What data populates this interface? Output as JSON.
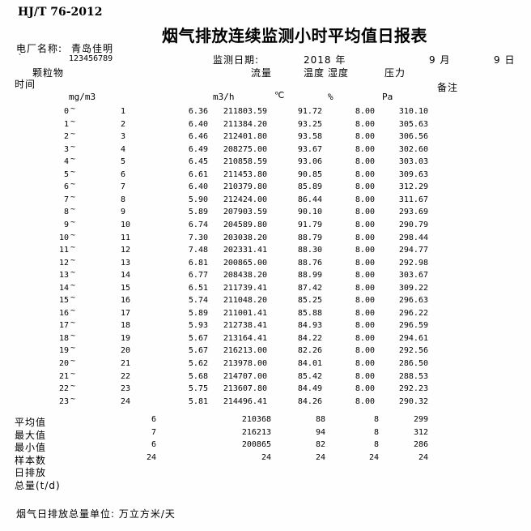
{
  "document": {
    "standard": "HJ/T 76-2012",
    "title": "烟气排放连续监测小时平均值日报表",
    "plant_label": "电厂名称:",
    "plant_name": "青岛佳明",
    "mark": "`",
    "plant_code": "123456789",
    "date_label": "监测日期:",
    "date_year": "2018 年",
    "date_month": "9 月",
    "date_day": "9 日"
  },
  "columns": {
    "time_label": "时间",
    "pm_label": "颗粒物",
    "flow_label": "流量",
    "temp_label": "温度",
    "hum_label": "湿度",
    "press_label": "压力",
    "note_label": "备注",
    "pm_unit": "mg/m3",
    "flow_unit": "m3/h",
    "temp_unit": "℃",
    "hum_unit": "%",
    "press_unit": "Pa",
    "tilde": "~"
  },
  "table": {
    "rows": [
      {
        "start": "0",
        "end": "1",
        "pm": "6.36",
        "flow": "211803.59",
        "temp": "91.72",
        "hum": "8.00",
        "press": "310.10"
      },
      {
        "start": "1",
        "end": "2",
        "pm": "6.40",
        "flow": "211384.20",
        "temp": "93.25",
        "hum": "8.00",
        "press": "305.63"
      },
      {
        "start": "2",
        "end": "3",
        "pm": "6.46",
        "flow": "212401.80",
        "temp": "93.58",
        "hum": "8.00",
        "press": "306.56"
      },
      {
        "start": "3",
        "end": "4",
        "pm": "6.49",
        "flow": "208275.00",
        "temp": "93.67",
        "hum": "8.00",
        "press": "302.60"
      },
      {
        "start": "4",
        "end": "5",
        "pm": "6.45",
        "flow": "210858.59",
        "temp": "93.06",
        "hum": "8.00",
        "press": "303.03"
      },
      {
        "start": "5",
        "end": "6",
        "pm": "6.61",
        "flow": "211453.80",
        "temp": "90.85",
        "hum": "8.00",
        "press": "309.63"
      },
      {
        "start": "6",
        "end": "7",
        "pm": "6.40",
        "flow": "210379.80",
        "temp": "85.89",
        "hum": "8.00",
        "press": "312.29"
      },
      {
        "start": "7",
        "end": "8",
        "pm": "5.90",
        "flow": "212424.00",
        "temp": "86.44",
        "hum": "8.00",
        "press": "311.67"
      },
      {
        "start": "8",
        "end": "9",
        "pm": "5.89",
        "flow": "207903.59",
        "temp": "90.10",
        "hum": "8.00",
        "press": "293.69"
      },
      {
        "start": "9",
        "end": "10",
        "pm": "6.74",
        "flow": "204589.80",
        "temp": "91.79",
        "hum": "8.00",
        "press": "290.79"
      },
      {
        "start": "10",
        "end": "11",
        "pm": "7.30",
        "flow": "203038.20",
        "temp": "88.79",
        "hum": "8.00",
        "press": "298.44"
      },
      {
        "start": "11",
        "end": "12",
        "pm": "7.48",
        "flow": "202331.41",
        "temp": "88.30",
        "hum": "8.00",
        "press": "294.77"
      },
      {
        "start": "12",
        "end": "13",
        "pm": "6.81",
        "flow": "200865.00",
        "temp": "88.76",
        "hum": "8.00",
        "press": "292.98"
      },
      {
        "start": "13",
        "end": "14",
        "pm": "6.77",
        "flow": "208438.20",
        "temp": "88.99",
        "hum": "8.00",
        "press": "303.67"
      },
      {
        "start": "14",
        "end": "15",
        "pm": "6.51",
        "flow": "211739.41",
        "temp": "87.42",
        "hum": "8.00",
        "press": "309.22"
      },
      {
        "start": "15",
        "end": "16",
        "pm": "5.74",
        "flow": "211048.20",
        "temp": "85.25",
        "hum": "8.00",
        "press": "296.63"
      },
      {
        "start": "16",
        "end": "17",
        "pm": "5.89",
        "flow": "211001.41",
        "temp": "85.88",
        "hum": "8.00",
        "press": "296.22"
      },
      {
        "start": "17",
        "end": "18",
        "pm": "5.93",
        "flow": "212738.41",
        "temp": "84.93",
        "hum": "8.00",
        "press": "296.59"
      },
      {
        "start": "18",
        "end": "19",
        "pm": "5.67",
        "flow": "213164.41",
        "temp": "84.22",
        "hum": "8.00",
        "press": "294.61"
      },
      {
        "start": "19",
        "end": "20",
        "pm": "5.67",
        "flow": "216213.00",
        "temp": "82.26",
        "hum": "8.00",
        "press": "292.56"
      },
      {
        "start": "20",
        "end": "21",
        "pm": "5.62",
        "flow": "213978.00",
        "temp": "84.01",
        "hum": "8.00",
        "press": "286.50"
      },
      {
        "start": "21",
        "end": "22",
        "pm": "5.68",
        "flow": "214707.00",
        "temp": "85.42",
        "hum": "8.00",
        "press": "288.53"
      },
      {
        "start": "22",
        "end": "23",
        "pm": "5.75",
        "flow": "213607.80",
        "temp": "84.49",
        "hum": "8.00",
        "press": "292.23"
      },
      {
        "start": "23",
        "end": "24",
        "pm": "5.81",
        "flow": "214496.41",
        "temp": "84.26",
        "hum": "8.00",
        "press": "290.32"
      }
    ]
  },
  "summary": {
    "rows": [
      {
        "label": "平均值",
        "pm": "6",
        "flow": "210368",
        "temp": "88",
        "hum": "8",
        "press": "299"
      },
      {
        "label": "最大值",
        "pm": "7",
        "flow": "216213",
        "temp": "94",
        "hum": "8",
        "press": "312"
      },
      {
        "label": "最小值",
        "pm": "6",
        "flow": "200865",
        "temp": "82",
        "hum": "8",
        "press": "286"
      },
      {
        "label": "样本数",
        "pm": "24",
        "flow": "24",
        "temp": "24",
        "hum": "24",
        "press": "24"
      },
      {
        "label": "日排放",
        "pm": "",
        "flow": "",
        "temp": "",
        "hum": "",
        "press": ""
      },
      {
        "label": "总量(t/d)",
        "pm": "",
        "flow": "",
        "temp": "",
        "hum": "",
        "press": ""
      }
    ]
  },
  "footer": {
    "note": "烟气日排放总量单位: 万立方米/天"
  }
}
